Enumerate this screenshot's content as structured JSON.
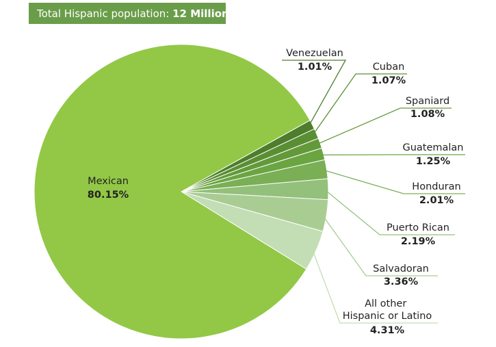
{
  "chart_data": {
    "type": "pie",
    "title": "Total Hispanic population:",
    "title_emphasis": "12 Million",
    "categories": [
      "Mexican",
      "Venezuelan",
      "Cuban",
      "Spaniard",
      "Guatemalan",
      "Honduran",
      "Puerto Rican",
      "Salvadoran",
      "All other Hispanic or Latino"
    ],
    "values": [
      80.15,
      1.01,
      1.07,
      1.08,
      1.25,
      2.01,
      2.19,
      3.36,
      4.31
    ],
    "value_labels": [
      "80.15%",
      "1.01%",
      "1.07%",
      "1.08%",
      "1.25%",
      "2.01%",
      "2.19%",
      "3.36%",
      "4.31%"
    ],
    "colors": [
      "#92c846",
      "#4e7d2c",
      "#5a8e33",
      "#63993a",
      "#6aa542",
      "#7aaf55",
      "#93c07a",
      "#a9cc93",
      "#c3ddb4"
    ]
  }
}
